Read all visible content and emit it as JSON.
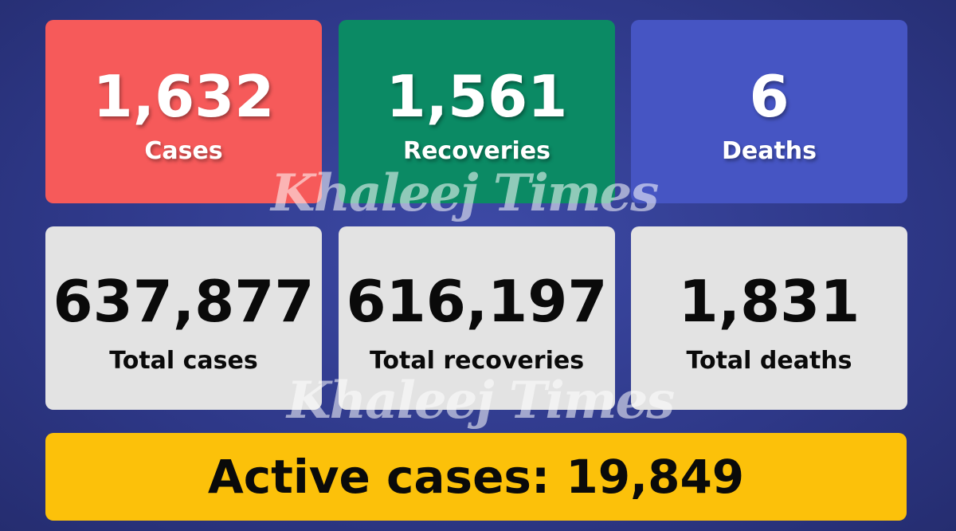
{
  "watermark": "Khaleej Times",
  "daily": [
    {
      "value": "1,632",
      "label": "Cases"
    },
    {
      "value": "1,561",
      "label": "Recoveries"
    },
    {
      "value": "6",
      "label": "Deaths"
    }
  ],
  "totals": [
    {
      "value": "637,877",
      "label": "Total cases"
    },
    {
      "value": "616,197",
      "label": "Total recoveries"
    },
    {
      "value": "1,831",
      "label": "Total deaths"
    }
  ],
  "active": {
    "label": "Active cases:",
    "value": "19,849"
  }
}
